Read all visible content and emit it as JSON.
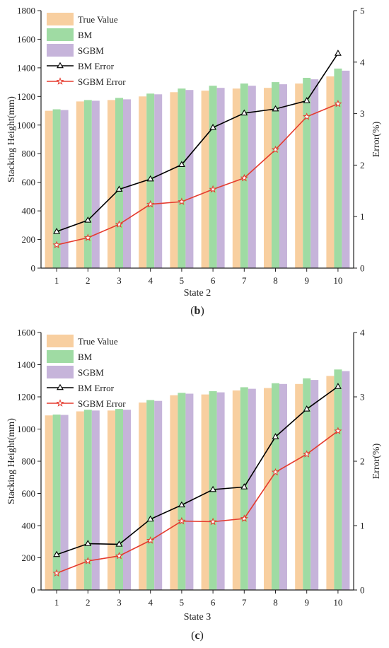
{
  "chart_data": [
    {
      "type": "bar",
      "panel_label_letter": "b",
      "categories": [
        "1",
        "2",
        "3",
        "4",
        "5",
        "6",
        "7",
        "8",
        "9",
        "10"
      ],
      "series": [
        {
          "name": "True Value",
          "kind": "bar",
          "axis": "left",
          "color": "#F8CFA0",
          "values": [
            1100,
            1165,
            1175,
            1200,
            1230,
            1240,
            1255,
            1260,
            1290,
            1340
          ]
        },
        {
          "name": "BM",
          "kind": "bar",
          "axis": "left",
          "color": "#9FDBA3",
          "values": [
            1110,
            1175,
            1190,
            1220,
            1255,
            1275,
            1290,
            1300,
            1330,
            1395
          ]
        },
        {
          "name": "SGBM",
          "kind": "bar",
          "axis": "left",
          "color": "#C6B4DA",
          "values": [
            1105,
            1170,
            1180,
            1215,
            1245,
            1260,
            1275,
            1285,
            1320,
            1380
          ]
        },
        {
          "name": "BM Error",
          "kind": "line",
          "axis": "right",
          "color": "#000000",
          "marker": "triangle",
          "values": [
            0.71,
            0.93,
            1.53,
            1.73,
            2.01,
            2.73,
            3.01,
            3.09,
            3.25,
            4.17
          ]
        },
        {
          "name": "SGBM Error",
          "kind": "line",
          "axis": "right",
          "color": "#E53B2E",
          "marker": "star",
          "values": [
            0.45,
            0.59,
            0.85,
            1.24,
            1.29,
            1.53,
            1.75,
            2.3,
            2.94,
            3.19
          ]
        }
      ],
      "xlabel": "State 2",
      "ylabel": "Stacking Height(mm)",
      "y2label": "Error(%)",
      "ylim": [
        0,
        1800
      ],
      "y2lim": [
        0,
        5
      ],
      "yticks": [
        "0",
        "200",
        "400",
        "600",
        "800",
        "1000",
        "1200",
        "1400",
        "1600",
        "1800"
      ],
      "y2ticks": [
        "0",
        "1",
        "2",
        "3",
        "4",
        "5"
      ],
      "legend_position": "top-left",
      "grid": false
    },
    {
      "type": "bar",
      "panel_label_letter": "c",
      "categories": [
        "1",
        "2",
        "3",
        "4",
        "5",
        "6",
        "7",
        "8",
        "9",
        "10"
      ],
      "series": [
        {
          "name": "True Value",
          "kind": "bar",
          "axis": "left",
          "color": "#F8CFA0",
          "values": [
            1085,
            1110,
            1115,
            1165,
            1210,
            1215,
            1240,
            1255,
            1280,
            1330
          ]
        },
        {
          "name": "BM",
          "kind": "bar",
          "axis": "left",
          "color": "#9FDBA3",
          "values": [
            1090,
            1120,
            1125,
            1180,
            1225,
            1235,
            1260,
            1285,
            1315,
            1370
          ]
        },
        {
          "name": "SGBM",
          "kind": "bar",
          "axis": "left",
          "color": "#C6B4DA",
          "values": [
            1088,
            1115,
            1120,
            1175,
            1220,
            1228,
            1250,
            1280,
            1305,
            1360
          ]
        },
        {
          "name": "BM Error",
          "kind": "line",
          "axis": "right",
          "color": "#000000",
          "marker": "triangle",
          "values": [
            0.55,
            0.72,
            0.71,
            1.1,
            1.32,
            1.56,
            1.6,
            2.38,
            2.81,
            3.16
          ]
        },
        {
          "name": "SGBM Error",
          "kind": "line",
          "axis": "right",
          "color": "#E53B2E",
          "marker": "star",
          "values": [
            0.26,
            0.45,
            0.53,
            0.77,
            1.07,
            1.06,
            1.11,
            1.83,
            2.11,
            2.47
          ]
        }
      ],
      "xlabel": "State 3",
      "ylabel": "Stacking Height(mm)",
      "y2label": "Error(%)",
      "ylim": [
        0,
        1600
      ],
      "y2lim": [
        0,
        4
      ],
      "yticks": [
        "0",
        "200",
        "400",
        "600",
        "800",
        "1000",
        "1200",
        "1400",
        "1600"
      ],
      "y2ticks": [
        "0",
        "1",
        "2",
        "3",
        "4"
      ],
      "legend_position": "top-left",
      "grid": false
    }
  ]
}
